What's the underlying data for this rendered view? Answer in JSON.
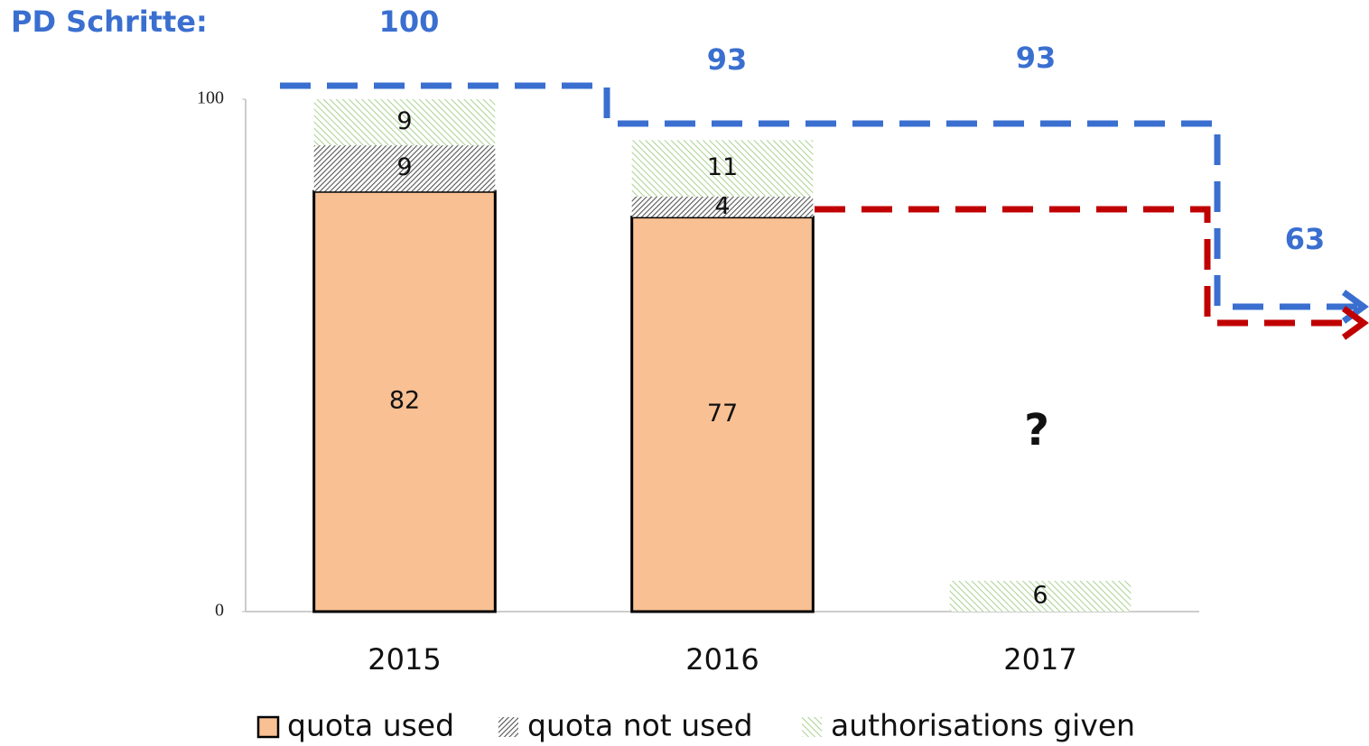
{
  "chart_data": {
    "type": "bar",
    "stacked": true,
    "categories": [
      "2015",
      "2016",
      "2017"
    ],
    "series": [
      {
        "name": "quota used",
        "color": "#f8c093",
        "hatch": false,
        "values": [
          82,
          77,
          null
        ]
      },
      {
        "name": "quota not used",
        "color": "#555555",
        "hatch": true,
        "values": [
          9,
          4,
          null
        ]
      },
      {
        "name": "authorisations given",
        "color": "#a9d18e",
        "hatch": true,
        "values": [
          9,
          11,
          6
        ]
      }
    ],
    "ylim": [
      0,
      100
    ],
    "yticks": [
      0,
      100
    ],
    "grid": false,
    "legend": "bottom",
    "annotations": [
      "PD Schritte:",
      "100",
      "93",
      "93",
      "63",
      "?"
    ]
  }
}
